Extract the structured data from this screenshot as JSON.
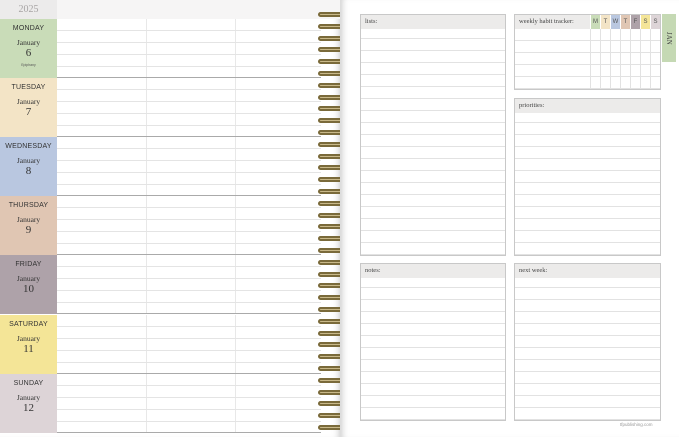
{
  "year": "2025",
  "days": [
    {
      "name": "MONDAY",
      "month": "January",
      "date": "6",
      "note": "Epiphany",
      "color": "#c9dcb8"
    },
    {
      "name": "TUESDAY",
      "month": "January",
      "date": "7",
      "note": "",
      "color": "#f3e4c6"
    },
    {
      "name": "WEDNESDAY",
      "month": "January",
      "date": "8",
      "note": "",
      "color": "#b9c7e0"
    },
    {
      "name": "THURSDAY",
      "month": "January",
      "date": "9",
      "note": "",
      "color": "#e0c6b3"
    },
    {
      "name": "FRIDAY",
      "month": "January",
      "date": "10",
      "note": "",
      "color": "#aea2a9"
    },
    {
      "name": "SATURDAY",
      "month": "January",
      "date": "11",
      "note": "",
      "color": "#f4e597"
    },
    {
      "name": "SUNDAY",
      "month": "January",
      "date": "12",
      "note": "",
      "color": "#ddd4d7"
    }
  ],
  "sections": {
    "lists": "lists:",
    "notes": "notes:",
    "priorities": "priorities:",
    "next_week": "next week:"
  },
  "habit": {
    "label": "weekly habit tracker:",
    "days": [
      {
        "l": "M",
        "c": "#c9dcb8"
      },
      {
        "l": "T",
        "c": "#f3e4c6"
      },
      {
        "l": "W",
        "c": "#b9c7e0"
      },
      {
        "l": "T",
        "c": "#e0c6b3"
      },
      {
        "l": "F",
        "c": "#aea2a9"
      },
      {
        "l": "S",
        "c": "#f4e597"
      },
      {
        "l": "S",
        "c": "#ddd4d7"
      }
    ]
  },
  "month_tab": "JAN",
  "footer": "tfpublishing.com"
}
